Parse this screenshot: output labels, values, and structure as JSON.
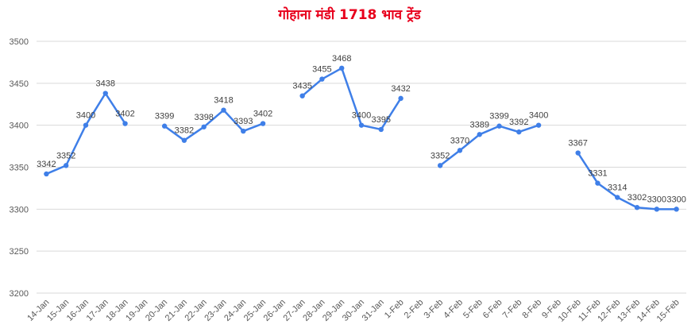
{
  "chart_data": {
    "type": "line",
    "title": "गोहाना मंडी 1718 भाव ट्रेंड",
    "categories": [
      "14-Jan",
      "15-Jan",
      "16-Jan",
      "17-Jan",
      "18-Jan",
      "19-Jan",
      "20-Jan",
      "21-Jan",
      "22-Jan",
      "23-Jan",
      "24-Jan",
      "25-Jan",
      "26-Jan",
      "27-Jan",
      "28-Jan",
      "29-Jan",
      "30-Jan",
      "31-Jan",
      "1-Feb",
      "2-Feb",
      "3-Feb",
      "4-Feb",
      "5-Feb",
      "6-Feb",
      "7-Feb",
      "8-Feb",
      "9-Feb",
      "10-Feb",
      "11-Feb",
      "12-Feb",
      "13-Feb",
      "14-Feb",
      "15-Feb"
    ],
    "values": [
      3342,
      3352,
      3400,
      3438,
      3402,
      null,
      3399,
      3382,
      3398,
      3418,
      3393,
      3402,
      null,
      3435,
      3455,
      3468,
      3400,
      3395,
      3432,
      null,
      3352,
      3370,
      3389,
      3399,
      3392,
      3400,
      null,
      3367,
      3331,
      3314,
      3302,
      3300,
      3300
    ],
    "color": "#3f7fe8",
    "ylim": [
      3200,
      3500
    ],
    "yticks": [
      3200,
      3250,
      3300,
      3350,
      3400,
      3450,
      3500
    ],
    "grid": true
  }
}
